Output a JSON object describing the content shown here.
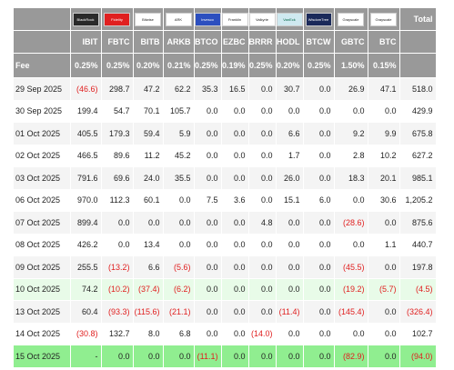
{
  "header": {
    "total_label": "Total",
    "fee_label": "Fee",
    "columns": [
      {
        "logo": "BlackRock",
        "logo_class": "lb-dark",
        "ticker": "IBIT",
        "fee": "0.25%"
      },
      {
        "logo": "Fidelity",
        "logo_class": "lb-red",
        "ticker": "FBTC",
        "fee": "0.25%"
      },
      {
        "logo": "Bitwise",
        "logo_class": "",
        "ticker": "BITB",
        "fee": "0.20%"
      },
      {
        "logo": "ARK",
        "logo_class": "",
        "ticker": "ARKB",
        "fee": "0.21%"
      },
      {
        "logo": "Invesco",
        "logo_class": "lb-blue",
        "ticker": "BTCO",
        "fee": "0.25%"
      },
      {
        "logo": "Franklin",
        "logo_class": "",
        "ticker": "EZBC",
        "fee": "0.19%"
      },
      {
        "logo": "Valkyrie",
        "logo_class": "",
        "ticker": "BRRR",
        "fee": "0.25%"
      },
      {
        "logo": "VanEck",
        "logo_class": "lb-teal",
        "ticker": "HODL",
        "fee": "0.20%"
      },
      {
        "logo": "WisdomTree",
        "logo_class": "lb-navy",
        "ticker": "BTCW",
        "fee": "0.25%"
      },
      {
        "logo": "Grayscale",
        "logo_class": "",
        "ticker": "GBTC",
        "fee": "1.50%"
      },
      {
        "logo": "Grayscale",
        "logo_class": "",
        "ticker": "BTC",
        "fee": "0.15%"
      }
    ]
  },
  "rows": [
    {
      "date": "29 Sep 2025",
      "values": [
        "(46.6)",
        "298.7",
        "47.2",
        "62.2",
        "35.3",
        "16.5",
        "0.0",
        "30.7",
        "0.0",
        "26.9",
        "47.1",
        "518.0"
      ],
      "hl": ""
    },
    {
      "date": "30 Sep 2025",
      "values": [
        "199.4",
        "54.7",
        "70.1",
        "105.7",
        "0.0",
        "0.0",
        "0.0",
        "0.0",
        "0.0",
        "0.0",
        "0.0",
        "429.9"
      ],
      "hl": ""
    },
    {
      "date": "01 Oct 2025",
      "values": [
        "405.5",
        "179.3",
        "59.4",
        "5.9",
        "0.0",
        "0.0",
        "0.0",
        "6.6",
        "0.0",
        "9.2",
        "9.9",
        "675.8"
      ],
      "hl": ""
    },
    {
      "date": "02 Oct 2025",
      "values": [
        "466.5",
        "89.6",
        "11.2",
        "45.2",
        "0.0",
        "0.0",
        "0.0",
        "1.7",
        "0.0",
        "2.8",
        "10.2",
        "627.2"
      ],
      "hl": ""
    },
    {
      "date": "03 Oct 2025",
      "values": [
        "791.6",
        "69.6",
        "24.0",
        "35.5",
        "0.0",
        "0.0",
        "0.0",
        "26.0",
        "0.0",
        "18.3",
        "20.1",
        "985.1"
      ],
      "hl": ""
    },
    {
      "date": "06 Oct 2025",
      "values": [
        "970.0",
        "112.3",
        "60.1",
        "0.0",
        "7.5",
        "3.6",
        "0.0",
        "15.1",
        "6.0",
        "0.0",
        "30.6",
        "1,205.2"
      ],
      "hl": ""
    },
    {
      "date": "07 Oct 2025",
      "values": [
        "899.4",
        "0.0",
        "0.0",
        "0.0",
        "0.0",
        "0.0",
        "4.8",
        "0.0",
        "0.0",
        "(28.6)",
        "0.0",
        "875.6"
      ],
      "hl": ""
    },
    {
      "date": "08 Oct 2025",
      "values": [
        "426.2",
        "0.0",
        "13.4",
        "0.0",
        "0.0",
        "0.0",
        "0.0",
        "0.0",
        "0.0",
        "0.0",
        "1.1",
        "440.7"
      ],
      "hl": ""
    },
    {
      "date": "09 Oct 2025",
      "values": [
        "255.5",
        "(13.2)",
        "6.6",
        "(5.6)",
        "0.0",
        "0.0",
        "0.0",
        "0.0",
        "0.0",
        "(45.5)",
        "0.0",
        "197.8"
      ],
      "hl": ""
    },
    {
      "date": "10 Oct 2025",
      "values": [
        "74.2",
        "(10.2)",
        "(37.4)",
        "(6.2)",
        "0.0",
        "0.0",
        "0.0",
        "0.0",
        "0.0",
        "(19.2)",
        "(5.7)",
        "(4.5)"
      ],
      "hl": "hl"
    },
    {
      "date": "13 Oct 2025",
      "values": [
        "60.4",
        "(93.3)",
        "(115.6)",
        "(21.1)",
        "0.0",
        "0.0",
        "0.0",
        "(11.4)",
        "0.0",
        "(145.4)",
        "0.0",
        "(326.4)"
      ],
      "hl": ""
    },
    {
      "date": "14 Oct 2025",
      "values": [
        "(30.8)",
        "132.7",
        "8.0",
        "6.8",
        "0.0",
        "0.0",
        "(14.0)",
        "0.0",
        "0.0",
        "0.0",
        "0.0",
        "102.7"
      ],
      "hl": ""
    },
    {
      "date": "15 Oct 2025",
      "values": [
        "-",
        "0.0",
        "0.0",
        "0.0",
        "(11.1)",
        "0.0",
        "0.0",
        "0.0",
        "0.0",
        "(82.9)",
        "0.0",
        "(94.0)"
      ],
      "hl": "hl2"
    }
  ]
}
